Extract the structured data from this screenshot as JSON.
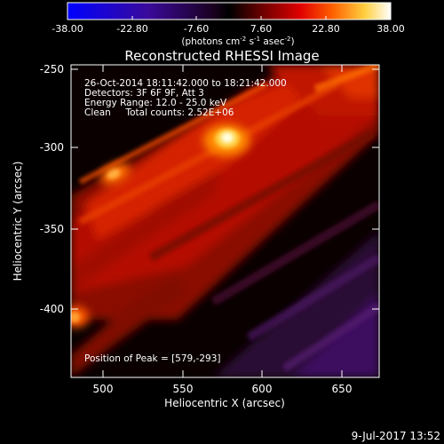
{
  "colorbar": {
    "ticks": [
      "-38.00",
      "-22.80",
      "-7.60",
      "7.60",
      "22.80",
      "38.00"
    ],
    "unit_prefix": "(photons cm",
    "unit_exp1": "-2",
    "unit_mid": " s",
    "unit_exp2": "-1",
    "unit_mid2": " asec",
    "unit_exp3": "-2",
    "unit_suffix": ")",
    "range": [
      -38.0,
      38.0
    ]
  },
  "info": {
    "time": "26-Oct-2014 18:11:42.000 to 18:21:42.000",
    "detectors": "Detectors: 3F 6F 9F, Att 3",
    "energy": "Energy Range: 12.0 - 25.0 keV",
    "clean": "Clean     Total counts: 2.52E+06",
    "peak": "Position of Peak = [579,-293]"
  },
  "footer": {
    "timestamp": "9-Jul-2017 13:52"
  },
  "colors": {
    "background": "#000000",
    "low": "#0000ff",
    "zero": "#000000",
    "high": "#ffffff"
  },
  "chart_data": {
    "type": "heatmap",
    "title": "Reconstructed RHESSI Image",
    "xlabel": "Heliocentric X (arcsec)",
    "ylabel": "Heliocentric Y (arcsec)",
    "xlim": [
      480,
      672
    ],
    "ylim": [
      -443,
      -248
    ],
    "xticks": [
      "500",
      "550",
      "600",
      "650"
    ],
    "yticks": [
      "-250",
      "-300",
      "-350",
      "-400"
    ],
    "colormap": "blue-purple-red-yellow-white",
    "peak": [
      579,
      -293
    ],
    "sources": [
      {
        "x": 579,
        "y": -293,
        "value": 38.0
      },
      {
        "x": 505,
        "y": -320,
        "value": 24.0
      },
      {
        "x": 483,
        "y": -405,
        "value": 22.0
      },
      {
        "x": 648,
        "y": -260,
        "value": 20.0
      }
    ]
  }
}
